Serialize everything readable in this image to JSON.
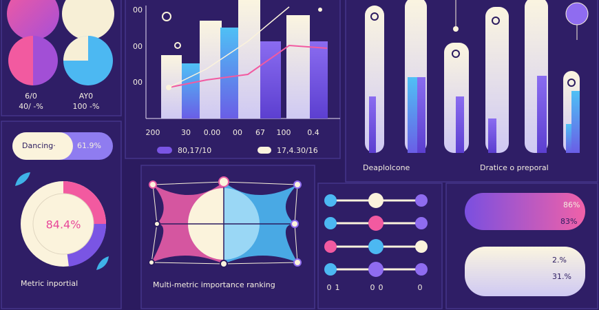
{
  "pies": {
    "labels": [
      {
        "top": "6/0",
        "bottom": "40/ -%"
      },
      {
        "top": "AY0",
        "bottom": "100 -%"
      }
    ]
  },
  "pill": {
    "label": "Dancing·",
    "value": "61.9%"
  },
  "donut": {
    "value": "84.4%",
    "caption": "Metric inportial"
  },
  "bar_panel": {
    "y_labels": [
      "00",
      "00",
      "00"
    ],
    "x_labels": [
      "200",
      "30",
      "0.00",
      "00",
      "67",
      "100",
      "0.4"
    ],
    "legend": [
      "80,17/10",
      "17,4.30/16"
    ]
  },
  "column_panel": {
    "captions": [
      "Deaplolcone",
      "Dratice o preporal"
    ]
  },
  "radar": {
    "caption": "Multi-metric importance ranking"
  },
  "sliders": {
    "labels": [
      "0",
      "1",
      "0",
      "0",
      "0"
    ]
  },
  "cards": [
    {
      "values": [
        "86%",
        "83%"
      ]
    },
    {
      "values": [
        "2.%",
        "31.%"
      ]
    }
  ]
}
